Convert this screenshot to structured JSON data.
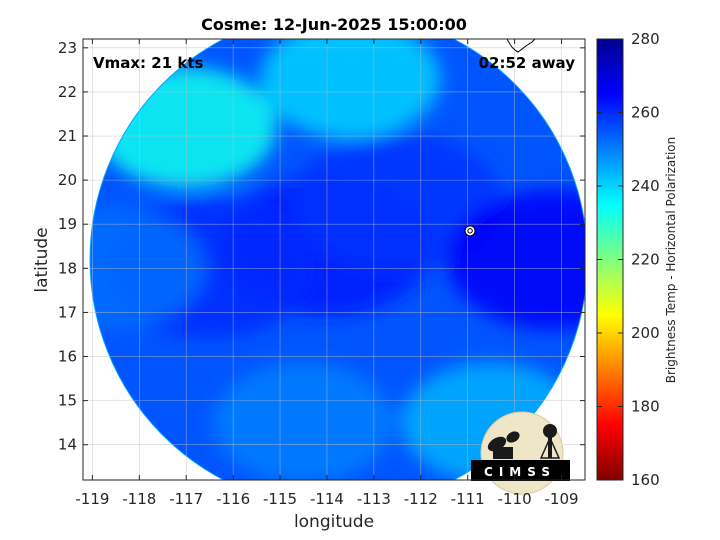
{
  "chart_data": {
    "type": "heatmap",
    "title": "Cosme: 12-Jun-2025 15:00:00",
    "xlabel": "longitude",
    "ylabel": "latitude",
    "xlim": [
      -119.2,
      -108.5
    ],
    "ylim": [
      13.2,
      23.2
    ],
    "xticks": [
      -119,
      -118,
      -117,
      -116,
      -115,
      -114,
      -113,
      -112,
      -111,
      -110,
      -109
    ],
    "yticks": [
      14,
      15,
      16,
      17,
      18,
      19,
      20,
      21,
      22,
      23
    ],
    "grid": true,
    "annotations": {
      "vmax": "Vmax: 21 kts",
      "time_away": "02:52 away"
    },
    "storm_center": {
      "lon": -110.95,
      "lat": 18.85
    },
    "swath": {
      "center_lon": -113.75,
      "center_lat": 18.2,
      "radius_deg": 5.3
    },
    "colorbar": {
      "label": "Brightness Temp - Horizontal Polarization",
      "range": [
        160,
        280
      ],
      "ticks": [
        160,
        180,
        200,
        220,
        240,
        260,
        280
      ],
      "colormap": "jet"
    },
    "field_samples": [
      {
        "lon": -114.0,
        "lat": 18.5,
        "value": 262
      },
      {
        "lon": -116.5,
        "lat": 18.0,
        "value": 260
      },
      {
        "lon": -112.5,
        "lat": 19.5,
        "value": 259
      },
      {
        "lon": -118.5,
        "lat": 18.0,
        "value": 252
      },
      {
        "lon": -113.5,
        "lat": 22.3,
        "value": 240
      },
      {
        "lon": -117.0,
        "lat": 21.2,
        "value": 233
      },
      {
        "lon": -109.2,
        "lat": 18.2,
        "value": 266
      },
      {
        "lon": -110.5,
        "lat": 14.5,
        "value": 244
      },
      {
        "lon": -114.5,
        "lat": 14.5,
        "value": 250
      }
    ]
  },
  "logo": {
    "text": "CIMSS"
  }
}
